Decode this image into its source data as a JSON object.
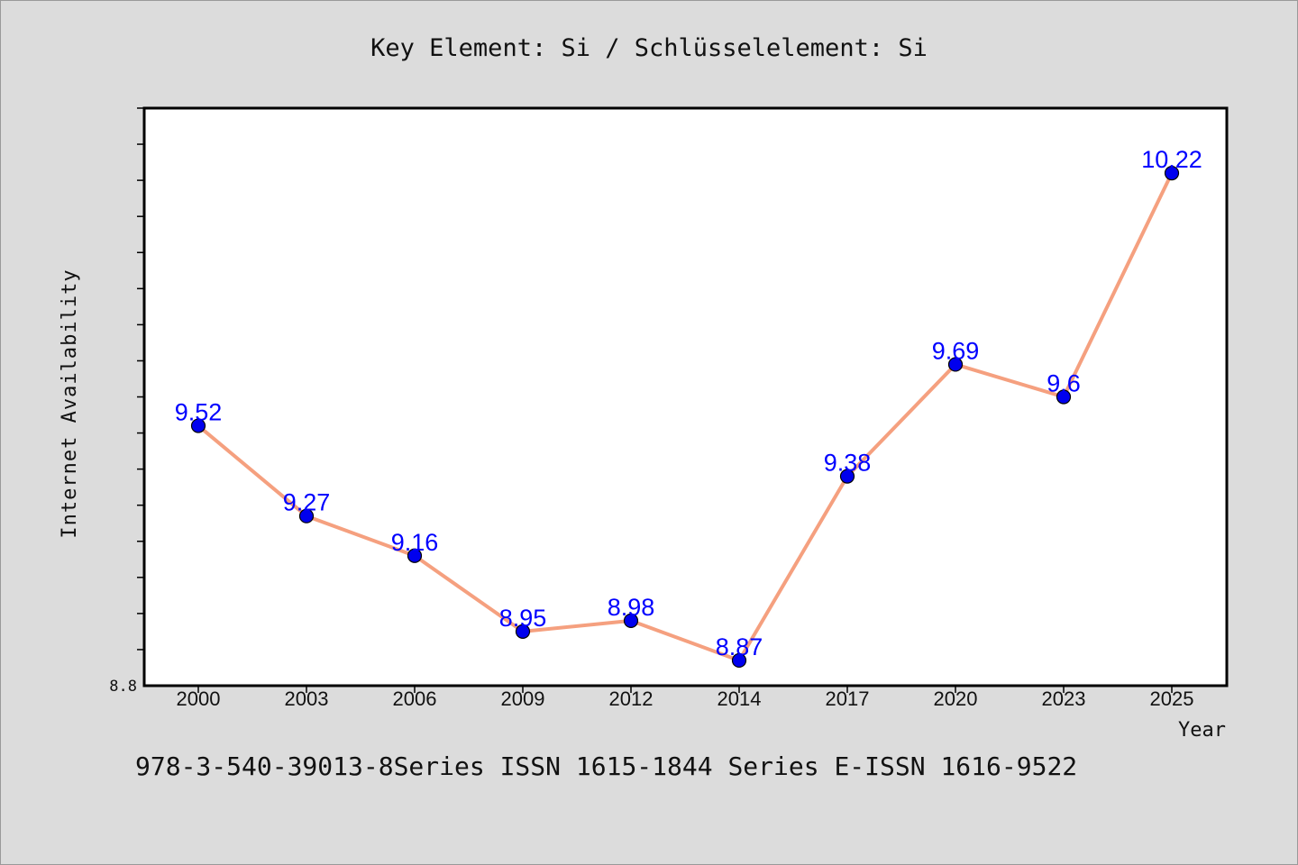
{
  "chart_data": {
    "type": "line",
    "title": "Key Element: Si / Schlüsselelement: Si",
    "xlabel": "Year",
    "ylabel": "Internet Availability",
    "categories": [
      "2000",
      "2003",
      "2006",
      "2009",
      "2012",
      "2014",
      "2017",
      "2020",
      "2023",
      "2025"
    ],
    "series": [
      {
        "values": [
          9.52,
          9.27,
          9.16,
          8.95,
          8.98,
          8.87,
          9.38,
          9.69,
          9.6,
          10.22
        ],
        "data_labels": [
          "9.52",
          "9.27",
          "9.16",
          "8.95",
          "8.98",
          "8.87",
          "9.38",
          "9.69",
          "9.6",
          "10.22"
        ],
        "line_color": "#f5a07f",
        "marker_color": "#0000ee",
        "label_color": "#0000ff"
      }
    ],
    "ylim": [
      8.8,
      10.4
    ],
    "y_tick_labels": [
      "8.8"
    ],
    "y_minor_tick_step": 0.1,
    "grid": false,
    "legend": "none"
  },
  "footer": {
    "text": "978-3-540-39013-8Series ISSN 1615-1844 Series E-ISSN 1616-9522"
  },
  "colors": {
    "background": "#dcdcdc",
    "plot_background": "#ffffff",
    "axis": "#000000"
  }
}
